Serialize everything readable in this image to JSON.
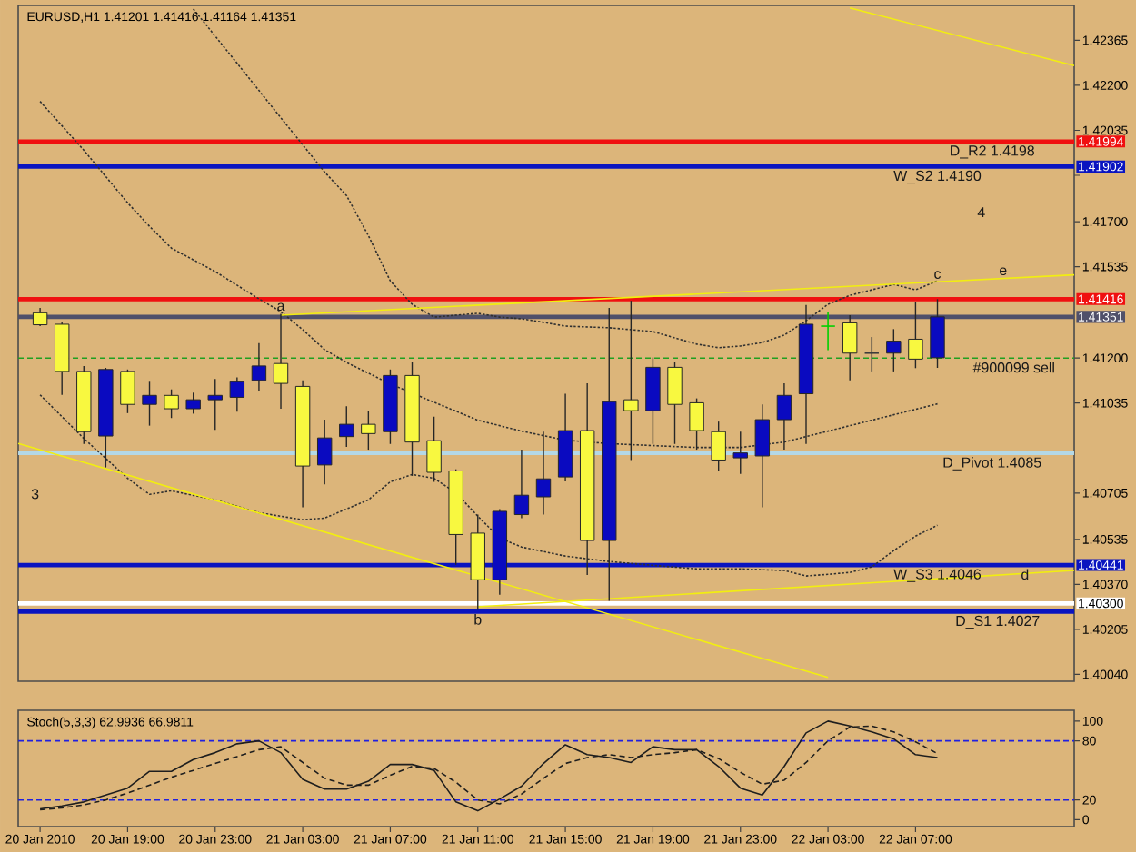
{
  "chart_data": [
    {
      "type": "candlestick",
      "title": "EURUSD,H1 1.41201 1.41416 1.41164 1.41351",
      "x": [
        "2010-01-20T15:00",
        "2010-01-20T16:00",
        "2010-01-20T17:00",
        "2010-01-20T18:00",
        "2010-01-20T19:00",
        "2010-01-20T20:00",
        "2010-01-20T21:00",
        "2010-01-20T22:00",
        "2010-01-20T23:00",
        "2010-01-21T00:00",
        "2010-01-21T01:00",
        "2010-01-21T02:00",
        "2010-01-21T03:00",
        "2010-01-21T04:00",
        "2010-01-21T05:00",
        "2010-01-21T06:00",
        "2010-01-21T07:00",
        "2010-01-21T08:00",
        "2010-01-21T09:00",
        "2010-01-21T10:00",
        "2010-01-21T11:00",
        "2010-01-21T12:00",
        "2010-01-21T13:00",
        "2010-01-21T14:00",
        "2010-01-21T15:00",
        "2010-01-21T16:00",
        "2010-01-21T17:00",
        "2010-01-21T18:00",
        "2010-01-21T19:00",
        "2010-01-21T20:00",
        "2010-01-21T21:00",
        "2010-01-21T22:00",
        "2010-01-21T23:00",
        "2010-01-22T00:00",
        "2010-01-22T01:00",
        "2010-01-22T02:00",
        "2010-01-22T03:00",
        "2010-01-22T04:00",
        "2010-01-22T05:00",
        "2010-01-22T06:00",
        "2010-01-22T07:00",
        "2010-01-22T08:00"
      ],
      "ohlc": [
        [
          1.41366,
          1.41384,
          1.41317,
          1.41322
        ],
        [
          1.41324,
          1.41331,
          1.41065,
          1.41151
        ],
        [
          1.41151,
          1.41171,
          1.40885,
          1.4093
        ],
        [
          1.40914,
          1.41164,
          1.40799,
          1.41158
        ],
        [
          1.41151,
          1.41158,
          1.40998,
          1.4103
        ],
        [
          1.4103,
          1.41113,
          1.40952,
          1.41063
        ],
        [
          1.41063,
          1.41085,
          1.4098,
          1.41014
        ],
        [
          1.41014,
          1.41073,
          1.40996,
          1.41047
        ],
        [
          1.41047,
          1.41123,
          1.40937,
          1.41063
        ],
        [
          1.41056,
          1.41129,
          1.41003,
          1.41113
        ],
        [
          1.41118,
          1.41255,
          1.41078,
          1.41171
        ],
        [
          1.4118,
          1.41362,
          1.41014,
          1.41107
        ],
        [
          1.41096,
          1.41118,
          1.40653,
          1.40804
        ],
        [
          1.40808,
          1.40974,
          1.40737,
          1.40907
        ],
        [
          1.40912,
          1.41023,
          1.40874,
          1.40957
        ],
        [
          1.40957,
          1.41007,
          1.40864,
          1.40923
        ],
        [
          1.4093,
          1.41158,
          1.40885,
          1.41136
        ],
        [
          1.41136,
          1.41184,
          1.40768,
          1.40892
        ],
        [
          1.40897,
          1.40985,
          1.40746,
          1.40781
        ],
        [
          1.40786,
          1.40792,
          1.40442,
          1.40553
        ],
        [
          1.40558,
          1.40626,
          1.40276,
          1.40387
        ],
        [
          1.40387,
          1.40646,
          1.40332,
          1.40638
        ],
        [
          1.40626,
          1.40864,
          1.40613,
          1.40697
        ],
        [
          1.40691,
          1.4093,
          1.40626,
          1.40757
        ],
        [
          1.40764,
          1.41069,
          1.40748,
          1.40934
        ],
        [
          1.40934,
          1.41107,
          1.40405,
          1.40531
        ],
        [
          1.40531,
          1.41384,
          1.4031,
          1.4104
        ],
        [
          1.41047,
          1.4141,
          1.40826,
          1.41007
        ],
        [
          1.41007,
          1.41202,
          1.40885,
          1.41166
        ],
        [
          1.41166,
          1.41184,
          1.40885,
          1.4103
        ],
        [
          1.41036,
          1.41052,
          1.40864,
          1.40934
        ],
        [
          1.4093,
          1.40967,
          1.40786,
          1.40826
        ],
        [
          1.40834,
          1.4093,
          1.40775,
          1.40852
        ],
        [
          1.40841,
          1.4103,
          1.40653,
          1.40974
        ],
        [
          1.40974,
          1.41107,
          1.40864,
          1.41063
        ],
        [
          1.41069,
          1.41395,
          1.40885,
          1.41324
        ],
        [
          1.41317,
          1.4137,
          1.41229,
          1.41317
        ],
        [
          1.41329,
          1.41357,
          1.41118,
          1.41218
        ],
        [
          1.41218,
          1.41277,
          1.41151,
          1.41218
        ],
        [
          1.41218,
          1.41306,
          1.41151,
          1.41262
        ],
        [
          1.41269,
          1.41406,
          1.41163,
          1.41196
        ],
        [
          1.41201,
          1.41416,
          1.41164,
          1.41351
        ]
      ],
      "colors": [
        "#f8f840",
        "#f8f840",
        "#f8f840",
        "#0a0ac0",
        "#f8f840",
        "#0a0ac0",
        "#f8f840",
        "#0a0ac0",
        "#0a0ac0",
        "#0a0ac0",
        "#0a0ac0",
        "#f8f840",
        "#f8f840",
        "#0a0ac0",
        "#0a0ac0",
        "#f8f840",
        "#0a0ac0",
        "#f8f840",
        "#f8f840",
        "#f8f840",
        "#f8f840",
        "#0a0ac0",
        "#0a0ac0",
        "#0a0ac0",
        "#0a0ac0",
        "#f8f840",
        "#0a0ac0",
        "#f8f840",
        "#0a0ac0",
        "#f8f840",
        "#f8f840",
        "#f8f840",
        "#0a0ac0",
        "#0a0ac0",
        "#0a0ac0",
        "#0a0ac0",
        "#00d000",
        "#f8f840",
        "#3c3c3c",
        "#0a0ac0",
        "#f8f840",
        "#0a0ac0"
      ],
      "series": [
        {
          "type": "line",
          "color": "#303030",
          "line_style": "dotted",
          "x": [
            "2010-01-20T22:00",
            "2010-01-21T00:00",
            "2010-01-21T02:00",
            "2010-01-21T03:00",
            "2010-01-21T04:00",
            "2010-01-21T05:00",
            "2010-01-21T06:00",
            "2010-01-21T07:00",
            "2010-01-21T08:00",
            "2010-01-21T09:00",
            "2010-01-21T10:00",
            "2010-01-21T11:00",
            "2010-01-21T12:00",
            "2010-01-21T13:00",
            "2010-01-21T14:00",
            "2010-01-21T15:00",
            "2010-01-21T17:00",
            "2010-01-21T19:00",
            "2010-01-21T21:00",
            "2010-01-21T22:00",
            "2010-01-21T23:00",
            "2010-01-22T00:00",
            "2010-01-22T01:00",
            "2010-01-22T02:00",
            "2010-01-22T03:00",
            "2010-01-22T04:00",
            "2010-01-22T05:00",
            "2010-01-22T06:00",
            "2010-01-22T07:00",
            "2010-01-22T08:00"
          ],
          "values": [
            1.4248,
            1.42281,
            1.42081,
            1.41982,
            1.41882,
            1.41796,
            1.41649,
            1.41483,
            1.41397,
            1.4135,
            1.41357,
            1.41364,
            1.4135,
            1.41344,
            1.41331,
            1.41317,
            1.41311,
            1.41297,
            1.41251,
            1.41238,
            1.41244,
            1.41257,
            1.41284,
            1.41337,
            1.41397,
            1.4143,
            1.4145,
            1.4147,
            1.4145,
            1.41483
          ]
        },
        {
          "type": "line",
          "color": "#303030",
          "line_style": "dotted",
          "x": [
            "2010-01-20T15:00",
            "2010-01-20T17:00",
            "2010-01-20T19:00",
            "2010-01-20T20:00",
            "2010-01-20T21:00",
            "2010-01-20T23:00",
            "2010-01-21T01:00",
            "2010-01-21T02:00",
            "2010-01-21T03:00",
            "2010-01-21T04:00",
            "2010-01-21T05:00",
            "2010-01-21T07:00",
            "2010-01-21T09:00",
            "2010-01-21T11:00",
            "2010-01-21T13:00",
            "2010-01-21T15:00",
            "2010-01-21T17:00",
            "2010-01-21T19:00",
            "2010-01-21T21:00",
            "2010-01-21T23:00",
            "2010-01-22T01:00",
            "2010-01-22T03:00",
            "2010-01-22T05:00",
            "2010-01-22T07:00",
            "2010-01-22T08:00"
          ],
          "values": [
            1.42141,
            1.41962,
            1.41769,
            1.41683,
            1.41603,
            1.41517,
            1.41417,
            1.4137,
            1.41304,
            1.41231,
            1.41184,
            1.41105,
            1.41038,
            1.40972,
            1.40932,
            1.40899,
            1.40886,
            1.40879,
            1.40872,
            1.40872,
            1.40892,
            1.40932,
            1.40972,
            1.41012,
            1.41032
          ]
        },
        {
          "type": "line",
          "color": "#303030",
          "line_style": "dotted",
          "x": [
            "2010-01-20T15:00",
            "2010-01-20T17:00",
            "2010-01-20T19:00",
            "2010-01-20T20:00",
            "2010-01-20T21:00",
            "2010-01-20T23:00",
            "2010-01-21T01:00",
            "2010-01-21T03:00",
            "2010-01-21T04:00",
            "2010-01-21T06:00",
            "2010-01-21T07:00",
            "2010-01-21T08:00",
            "2010-01-21T09:00",
            "2010-01-21T10:00",
            "2010-01-21T11:00",
            "2010-01-21T12:00",
            "2010-01-21T13:00",
            "2010-01-21T15:00",
            "2010-01-21T17:00",
            "2010-01-21T19:00",
            "2010-01-21T21:00",
            "2010-01-21T23:00",
            "2010-01-22T01:00",
            "2010-01-22T02:00",
            "2010-01-22T03:00",
            "2010-01-22T04:00",
            "2010-01-22T05:00",
            "2010-01-22T06:00",
            "2010-01-22T07:00",
            "2010-01-22T08:00"
          ],
          "values": [
            1.41065,
            1.40905,
            1.40759,
            1.407,
            1.40713,
            1.4068,
            1.40633,
            1.40607,
            1.40613,
            1.4068,
            1.40746,
            1.40773,
            1.40759,
            1.40706,
            1.4062,
            1.4054,
            1.40507,
            1.40474,
            1.40454,
            1.4044,
            1.40427,
            1.40427,
            1.40421,
            1.40401,
            1.40407,
            1.40414,
            1.40434,
            1.40494,
            1.40547,
            1.40587
          ]
        },
        {
          "type": "line",
          "color": "#f2ee10",
          "line_style": "solid",
          "x": [
            "2010-01-21T02:00",
            "2010-01-22T14:15"
          ],
          "values": [
            1.41357,
            1.41505
          ]
        },
        {
          "type": "line",
          "color": "#f2ee10",
          "line_style": "solid",
          "x": [
            "2010-01-22T04:00",
            "2010-01-22T14:15"
          ],
          "values": [
            1.42484,
            1.42272
          ]
        },
        {
          "type": "line",
          "color": "#f2ee10",
          "line_style": "solid",
          "x": [
            "2010-01-20T14:00",
            "2010-01-22T03:00"
          ],
          "values": [
            1.40887,
            1.40029
          ]
        },
        {
          "type": "line",
          "color": "#f2ee10",
          "line_style": "solid",
          "x": [
            "2010-01-21T11:00",
            "2010-01-22T14:15"
          ],
          "values": [
            1.40288,
            1.40421
          ]
        }
      ],
      "xlim": [
        "2010-01-20T14:00",
        "2010-01-22T14:15"
      ],
      "ylim": [
        1.40015,
        1.42493
      ],
      "yticks": [
        1.42365,
        {
          "value": 1.422,
          "label": "1.42200"
        },
        1.42035,
        {
          "value": 1.4187,
          "label": null
        },
        {
          "value": 1.417,
          "label": "1.41700"
        },
        1.41535,
        {
          "value": 1.412,
          "label": "1.41200"
        },
        1.41035,
        1.40705,
        1.40535,
        {
          "value": 1.4037,
          "label": "1.40370"
        },
        1.40205,
        {
          "value": 1.4004,
          "label": "1.40040"
        }
      ],
      "tick_labels": "y",
      "ref_lines": [
        {
          "axis": "y",
          "value": 1.41994,
          "label": "1.41994",
          "color": "#f01010"
        },
        {
          "axis": "y",
          "value": 1.41902,
          "label": "1.41902",
          "color": "#0a14c0"
        },
        {
          "axis": "y",
          "value": 1.41416,
          "label": "1.41416",
          "color": "#f01010"
        },
        {
          "axis": "y",
          "value": 1.41351,
          "label": "1.41351",
          "color": "#50506a"
        },
        {
          "axis": "y",
          "value": 1.412,
          "color": "#20a020",
          "line_style": "dashed"
        },
        {
          "axis": "y",
          "value": 1.40852,
          "color": "#b4d8e6"
        },
        {
          "axis": "y",
          "value": 1.40441,
          "label": "1.40441",
          "color": "#0a14c0"
        },
        {
          "axis": "y",
          "value": 1.403,
          "label": "1.40300",
          "color": "#ffffff"
        },
        {
          "axis": "y",
          "value": 1.4027,
          "color": "#0a14c0"
        }
      ],
      "annotations": [
        {
          "text": "a",
          "x": "2010-01-21T02:00",
          "y": 1.41362
        },
        {
          "text": "b",
          "x": "2010-01-21T11:00",
          "y": 1.40276
        },
        {
          "text": "c",
          "x": "2010-01-22T08:00",
          "y": 1.41479
        },
        {
          "text": "d",
          "x": "2010-01-22T12:00",
          "y": 1.40441
        },
        {
          "text": "e",
          "x": "2010-01-22T11:00",
          "y": 1.41492
        },
        "4",
        "3",
        {
          "text": "D_R2 1.4198",
          "x": "2010-01-22T10:30",
          "y": 1.41994
        },
        {
          "text": "W_S2 1.4190",
          "x": "2010-01-22T08:00",
          "y": 1.41902
        },
        {
          "text": "#900099 sell",
          "x": "2010-01-22T11:30",
          "y": 1.412
        },
        {
          "text": "D_Pivot 1.4085",
          "x": "2010-01-22T10:30",
          "y": 1.40852
        },
        {
          "text": "W_S3 1.4046",
          "x": "2010-01-22T08:00",
          "y": 1.40441
        },
        {
          "text": "D_S1 1.4027",
          "x": "2010-01-22T10:45",
          "y": 1.4027
        }
      ]
    },
    {
      "type": "line",
      "title": "Stoch(5,3,3) 62.9936 66.9811",
      "x": [
        "2010-01-20T15:00",
        "2010-01-20T16:00",
        "2010-01-20T17:00",
        "2010-01-20T18:00",
        "2010-01-20T19:00",
        "2010-01-20T20:00",
        "2010-01-20T21:00",
        "2010-01-20T22:00",
        "2010-01-20T23:00",
        "2010-01-21T00:00",
        "2010-01-21T01:00",
        "2010-01-21T02:00",
        "2010-01-21T03:00",
        "2010-01-21T04:00",
        "2010-01-21T05:00",
        "2010-01-21T06:00",
        "2010-01-21T07:00",
        "2010-01-21T08:00",
        "2010-01-21T09:00",
        "2010-01-21T10:00",
        "2010-01-21T11:00",
        "2010-01-21T12:00",
        "2010-01-21T13:00",
        "2010-01-21T14:00",
        "2010-01-21T15:00",
        "2010-01-21T16:00",
        "2010-01-21T17:00",
        "2010-01-21T18:00",
        "2010-01-21T19:00",
        "2010-01-21T20:00",
        "2010-01-21T21:00",
        "2010-01-21T22:00",
        "2010-01-21T23:00",
        "2010-01-22T00:00",
        "2010-01-22T01:00",
        "2010-01-22T02:00",
        "2010-01-22T03:00",
        "2010-01-22T04:00",
        "2010-01-22T05:00",
        "2010-01-22T06:00",
        "2010-01-22T07:00",
        "2010-01-22T08:00"
      ],
      "series": [
        {
          "color": "#1e1e1e",
          "line_style": "solid",
          "values": [
            11,
            14,
            18,
            25,
            32,
            49,
            49,
            61,
            68,
            77,
            80,
            68,
            41,
            31,
            31,
            39,
            56,
            56,
            50,
            18,
            9,
            21,
            34,
            57,
            76,
            66,
            63,
            58,
            74,
            71,
            71,
            54,
            32,
            25,
            54,
            88,
            100,
            95,
            89,
            82,
            66,
            63
          ]
        },
        {
          "color": "#1e1e1e",
          "line_style": "dashed",
          "values": [
            10,
            12,
            15,
            20,
            27,
            35,
            43,
            50,
            57,
            64,
            71,
            74,
            58,
            42,
            35,
            35,
            45,
            54,
            52,
            38,
            20,
            16,
            26,
            42,
            57,
            63,
            66,
            63,
            66,
            68,
            71,
            62,
            48,
            36,
            40,
            58,
            80,
            94,
            95,
            89,
            79,
            67
          ]
        }
      ],
      "xlim": [
        "2010-01-20T14:00",
        "2010-01-22T14:15"
      ],
      "ylim": [
        -7,
        111
      ],
      "xticks": [
        {
          "value": "2010-01-20T15:00",
          "label": "20 Jan 2010"
        },
        {
          "value": "2010-01-20T19:00",
          "label": "20 Jan 19:00"
        },
        {
          "value": "2010-01-20T23:00",
          "label": "20 Jan 23:00"
        },
        {
          "value": "2010-01-21T03:00",
          "label": "21 Jan 03:00"
        },
        {
          "value": "2010-01-21T07:00",
          "label": "21 Jan 07:00"
        },
        {
          "value": "2010-01-21T11:00",
          "label": "21 Jan 11:00"
        },
        {
          "value": "2010-01-21T15:00",
          "label": "21 Jan 15:00"
        },
        {
          "value": "2010-01-21T19:00",
          "label": "21 Jan 19:00"
        },
        {
          "value": "2010-01-21T23:00",
          "label": "21 Jan 23:00"
        },
        {
          "value": "2010-01-22T03:00",
          "label": "22 Jan 03:00"
        },
        {
          "value": "2010-01-22T07:00",
          "label": "22 Jan 07:00"
        }
      ],
      "yticks": [
        100,
        80,
        20,
        0
      ],
      "ref_lines": [
        {
          "axis": "y",
          "value": 80,
          "color": "#2020e0",
          "line_style": "dashed"
        },
        {
          "axis": "y",
          "value": 20,
          "color": "#2020e0",
          "line_style": "dashed"
        }
      ]
    }
  ]
}
